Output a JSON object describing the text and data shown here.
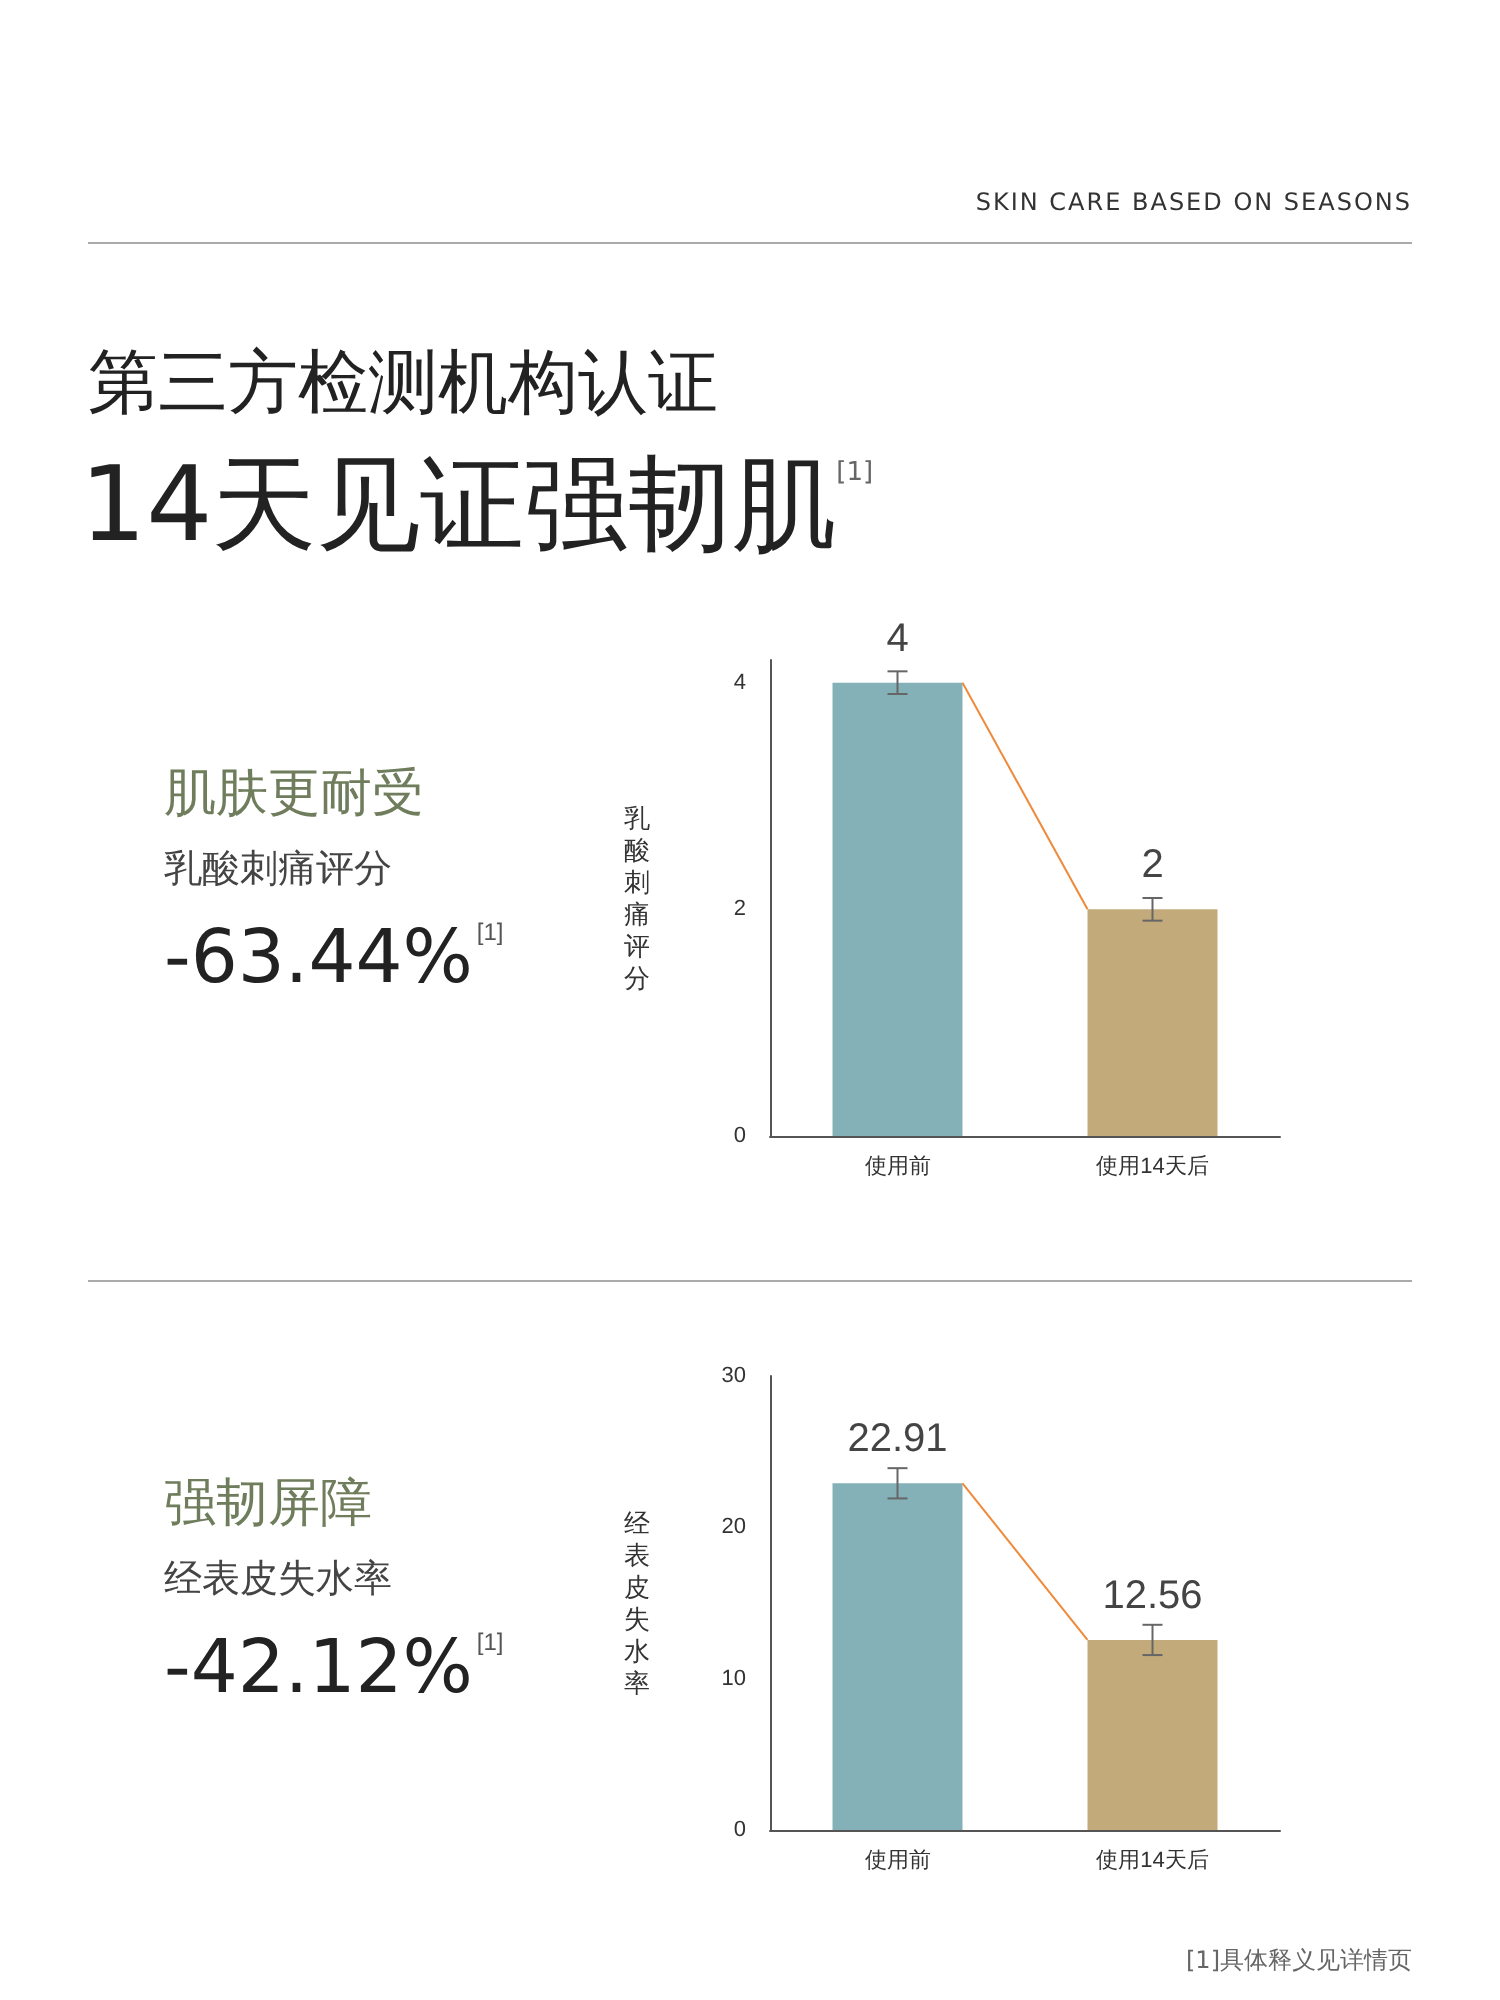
{
  "chart_data": [
    {
      "type": "other",
      "title": "第三方检测机构认证",
      "subtitle": "14天见证强韧肌$^{[1]}$",
      "annotations": [
        "SKIN CARE BASED ON SEASONS"
      ]
    },
    {
      "type": "bar",
      "annotations": [
        "肌肤更耐受",
        "乳酸刺痛评分",
        "-63.44%$^{[1]}$"
      ],
      "ylabel": "乳酸刺痛评分",
      "categories": [
        "使用前",
        "使用14天后"
      ],
      "ylim": [
        0,
        4.2
      ],
      "yticks": [
        0,
        2,
        4
      ],
      "data_labels": true,
      "series": [
        {
          "colors": [
            "#84b0b8",
            "#c3aa7a"
          ],
          "values": [
            4,
            2
          ],
          "errors": [
            0.1,
            0.1
          ]
        }
      ]
    },
    {
      "type": "bar",
      "annotations": [
        "强韧屏障",
        "经表皮失水率",
        "-42.12%$^{[1]}$",
        "[1]具体释义见详情页"
      ],
      "ylabel": "经表皮失水率",
      "categories": [
        "使用前",
        "使用14天后"
      ],
      "ylim": [
        0,
        30
      ],
      "yticks": [
        0,
        10,
        20,
        30
      ],
      "data_labels": true,
      "series": [
        {
          "colors": [
            "#84b0b8",
            "#c3aa7a"
          ],
          "values": [
            22.91,
            12.56
          ],
          "errors": [
            1,
            1
          ]
        }
      ]
    }
  ]
}
